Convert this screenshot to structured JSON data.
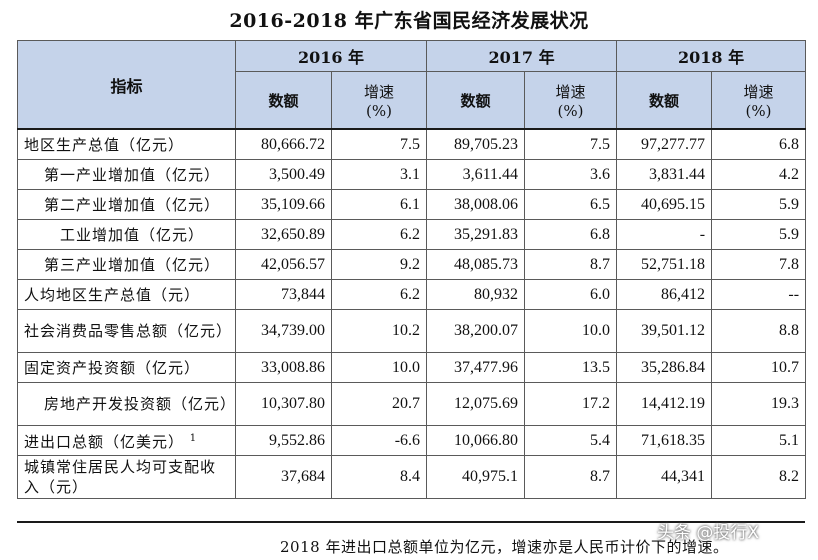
{
  "title": "2016-2018 年广东省国民经济发展状况",
  "header": {
    "indicator": "指标",
    "years": [
      "2016 年",
      "2017 年",
      "2018 年"
    ],
    "amount": "数额",
    "growth_line1": "增速",
    "growth_line2": "(%)"
  },
  "rows": [
    {
      "label": "地区生产总值（亿元）",
      "indent": 0,
      "sup": "",
      "cells": [
        "80,666.72",
        "7.5",
        "89,705.23",
        "7.5",
        "97,277.77",
        "6.8"
      ]
    },
    {
      "label": "第一产业增加值（亿元）",
      "indent": 1,
      "sup": "",
      "cells": [
        "3,500.49",
        "3.1",
        "3,611.44",
        "3.6",
        "3,831.44",
        "4.2"
      ]
    },
    {
      "label": "第二产业增加值（亿元）",
      "indent": 1,
      "sup": "",
      "cells": [
        "35,109.66",
        "6.1",
        "38,008.06",
        "6.5",
        "40,695.15",
        "5.9"
      ]
    },
    {
      "label": "工业增加值（亿元）",
      "indent": 2,
      "sup": "",
      "cells": [
        "32,650.89",
        "6.2",
        "35,291.83",
        "6.8",
        "-",
        "5.9"
      ]
    },
    {
      "label": "第三产业增加值（亿元）",
      "indent": 1,
      "sup": "",
      "cells": [
        "42,056.57",
        "9.2",
        "48,085.73",
        "8.7",
        "52,751.18",
        "7.8"
      ]
    },
    {
      "label": "人均地区生产总值（元）",
      "indent": 0,
      "sup": "",
      "cells": [
        "73,844",
        "6.2",
        "80,932",
        "6.0",
        "86,412",
        "--"
      ]
    },
    {
      "label": "社会消费品零售总额（亿元）",
      "indent": 0,
      "sup": "",
      "cells": [
        "34,739.00",
        "10.2",
        "38,200.07",
        "10.0",
        "39,501.12",
        "8.8"
      ]
    },
    {
      "label": "固定资产投资额（亿元）",
      "indent": 0,
      "sup": "",
      "cells": [
        "33,008.86",
        "10.0",
        "37,477.96",
        "13.5",
        "35,286.84",
        "10.7"
      ]
    },
    {
      "label": "房地产开发投资额（亿元）",
      "indent": 1,
      "sup": "",
      "cells": [
        "10,307.80",
        "20.7",
        "12,075.69",
        "17.2",
        "14,412.19",
        "19.3"
      ]
    },
    {
      "label": "进出口总额（亿美元）",
      "indent": 0,
      "sup": "1",
      "cells": [
        "9,552.86",
        "-6.6",
        "10,066.80",
        "5.4",
        "71,618.35",
        "5.1"
      ]
    },
    {
      "label": "城镇常住居民人均可支配收入（元）",
      "indent": 0,
      "sup": "",
      "cells": [
        "37,684",
        "8.4",
        "40,975.1",
        "8.7",
        "44,341",
        "8.2"
      ]
    }
  ],
  "footnote": "2018 年进出口总额单位为亿元，增速亦是人民币计价下的增速。",
  "watermark": "头条 @投行X"
}
